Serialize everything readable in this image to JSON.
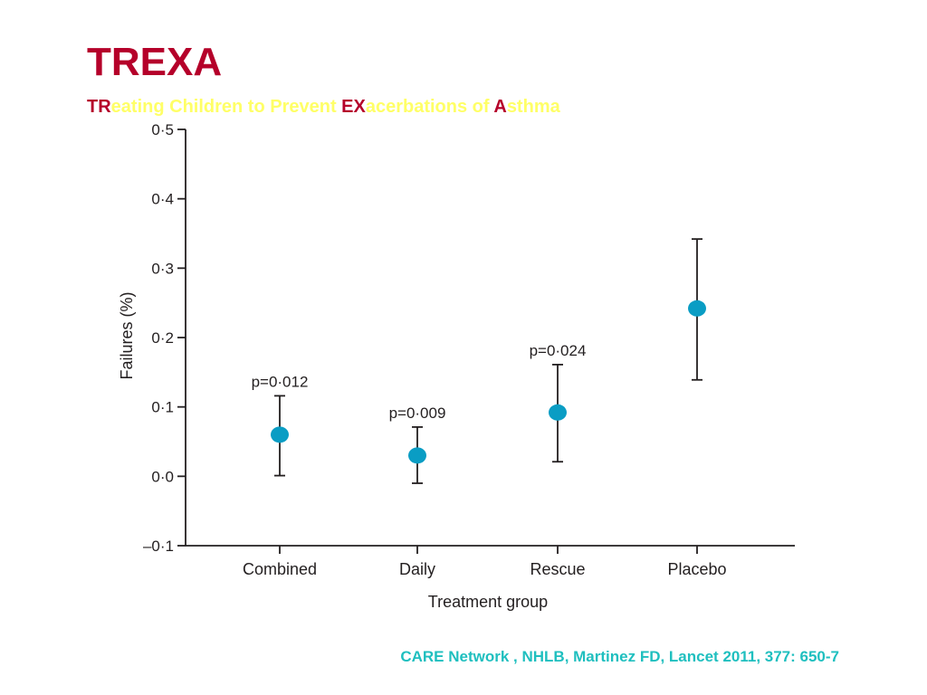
{
  "slide": {
    "title": "TREXA",
    "subtitle_parts": [
      {
        "text": "TR",
        "highlight": true
      },
      {
        "text": "eating Children to Prevent ",
        "highlight": false
      },
      {
        "text": "EX",
        "highlight": true
      },
      {
        "text": "acerbations of ",
        "highlight": false
      },
      {
        "text": "A",
        "highlight": true
      },
      {
        "text": "sthma",
        "highlight": false
      }
    ],
    "citation": "CARE Network , NHLB, Martinez FD, Lancet 2011, 377: 650-7"
  },
  "colors": {
    "title": "#b5002a",
    "highlight": "#b5002a",
    "subtitle_text": "#ffff66",
    "citation": "#1fbfbf",
    "marker": "#0a9dc4",
    "axis": "#231f20"
  },
  "chart_data": {
    "type": "scatter",
    "title": "",
    "xlabel": "Treatment group",
    "ylabel": "Failures (%)",
    "categories": [
      "Combined",
      "Daily",
      "Rescue",
      "Placebo"
    ],
    "values": [
      0.06,
      0.03,
      0.092,
      0.242
    ],
    "error_low": [
      0.001,
      -0.01,
      0.021,
      0.139
    ],
    "error_high": [
      0.116,
      0.071,
      0.161,
      0.342
    ],
    "annotations": [
      "p=0·012",
      "p=0·009",
      "p=0·024",
      ""
    ],
    "ylim": [
      -0.1,
      0.5
    ],
    "yticks": [
      -0.1,
      0.0,
      0.1,
      0.2,
      0.3,
      0.4,
      0.5
    ],
    "ytick_labels": [
      "–0·1",
      "0·0",
      "0·1",
      "0·2",
      "0·3",
      "0·4",
      "0·5"
    ],
    "grid": false,
    "legend": "none"
  }
}
